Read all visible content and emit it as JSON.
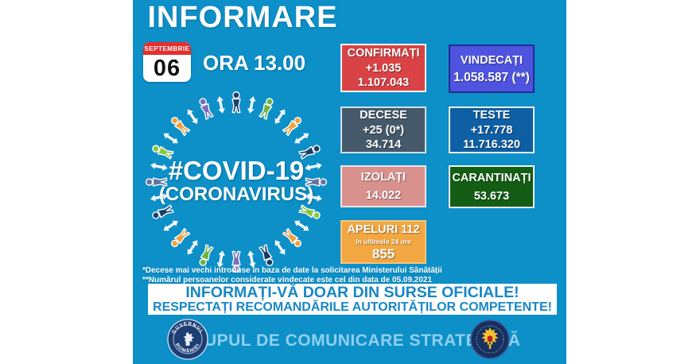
{
  "header": {
    "title": "INFORMARE",
    "calendar_month": "SEPTEMBRIE",
    "calendar_day": "06",
    "time": "ORA 13.00"
  },
  "center": {
    "hashtag": "#COVID-19",
    "subtitle": "(CORONAVIRUS)",
    "arrow_color": "#ffffff",
    "person_colors": [
      "#1c3f66",
      "#6fb33e",
      "#f0a13e",
      "#1c3f66",
      "#66729b",
      "#8cc63f",
      "#f0a13e",
      "#173a5e",
      "#7a6cba",
      "#6fb33e",
      "#f0a13e",
      "#1c3f66",
      "#66729b",
      "#8cc63f",
      "#f0a13e",
      "#7a6cba"
    ]
  },
  "stats": {
    "confirmati": {
      "label": "CONFIRMAȚI",
      "delta": "+1.035",
      "total": "1.107.043",
      "bg": "#d94345",
      "border": "#f2f2f2"
    },
    "vindecati": {
      "label": "VINDECAȚI",
      "total": "1.058.587 (**)",
      "bg": "#4e54e0",
      "border": "#202e8d"
    },
    "decese": {
      "label": "DECESE",
      "delta": "+25 (0*)",
      "total": "34.714",
      "bg": "#46596a",
      "border": "#cfe3ef"
    },
    "teste": {
      "label": "TESTE",
      "delta": "+17.778",
      "total": "11.716.320",
      "bg": "#0e5fa4",
      "border": "#e8f2f8"
    },
    "izolati": {
      "label": "IZOLAȚI",
      "total": "14.022",
      "bg": "#d9918e",
      "border": "#f2e4e4"
    },
    "carantinati": {
      "label": "CARANTINAȚI",
      "total": "53.673",
      "bg": "#135e14",
      "border": "#eef5ee"
    },
    "apeluri": {
      "label": "APELURI 112",
      "sub": "în ultimele 24 ore",
      "total": "855",
      "bg": "#f2a742",
      "border": "#f6c57d"
    }
  },
  "footnotes": {
    "line1": "*Decese mai vechi introduse în baza de date la solicitarea Ministerului Sănătății",
    "line2": "**Numărul persoanelor considerate vindecate este cel din data de 05.09.2021"
  },
  "banner": {
    "line1": "INFORMAȚI-VĂ DOAR DIN SURSE OFICIALE!",
    "line2": "RESPECTAȚI RECOMANDĂRILE AUTORITĂȚILOR COMPETENTE!",
    "text_color": "#1787c7"
  },
  "footer": {
    "text": "GRUPUL DE COMUNICARE STRATEGICĂ",
    "left_seal_top": "GUVERNUL",
    "left_seal_bottom": "ROMÂNIEI"
  },
  "colors": {
    "page_bg": "#ffffff",
    "panel_bg": "#0d8fc8",
    "calendar_red": "#e52e2e",
    "footer_text": "#8fd0ef"
  }
}
